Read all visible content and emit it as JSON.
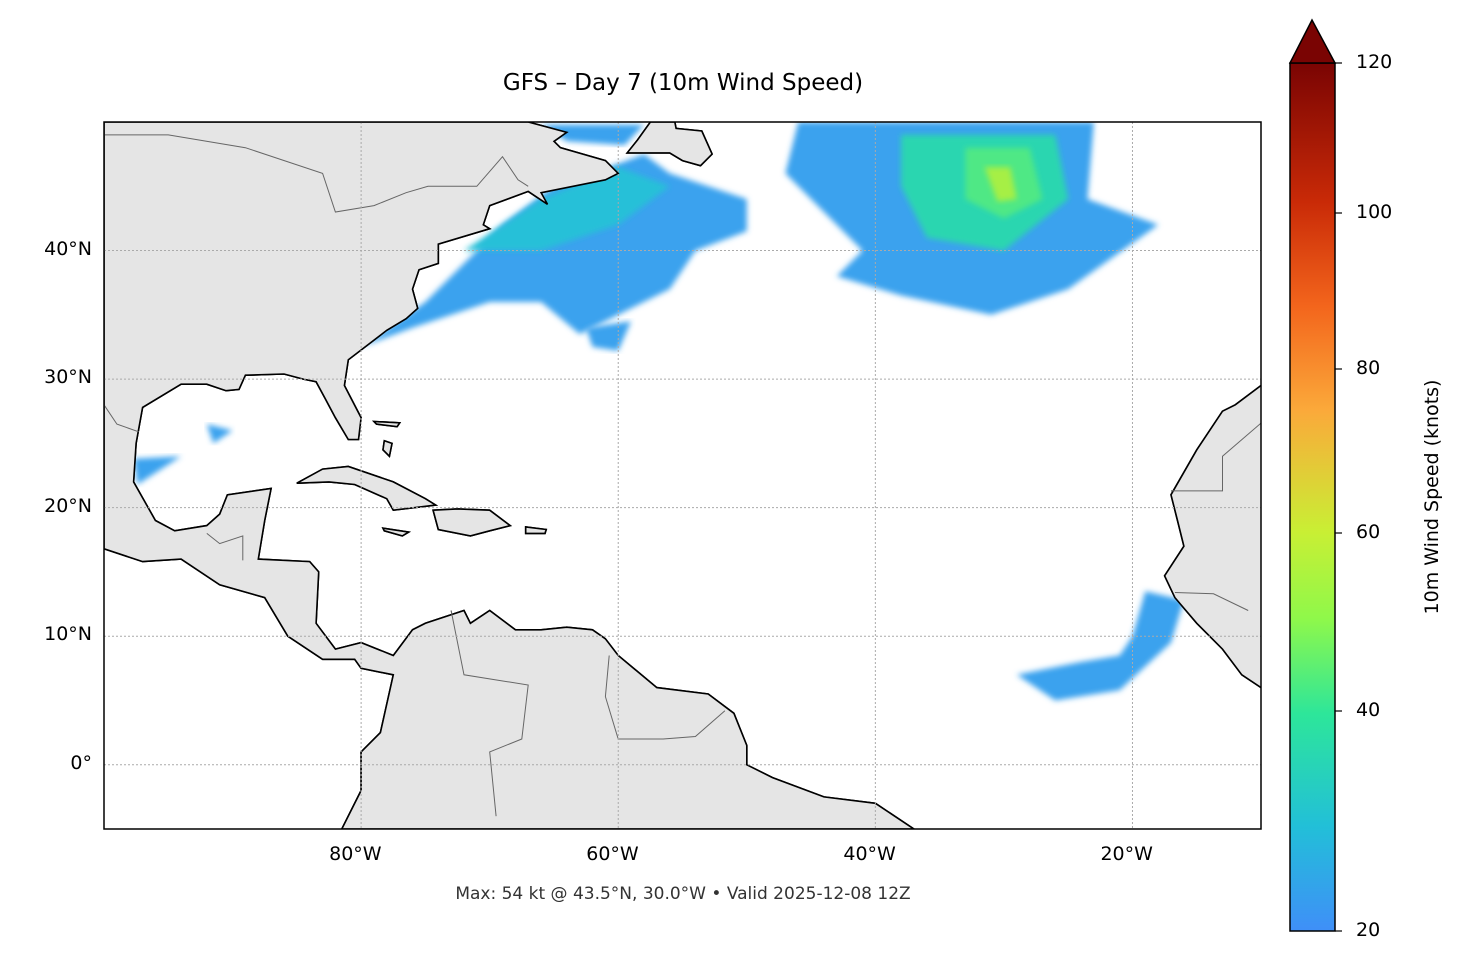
{
  "title": "GFS – Day 7 (10m Wind Speed)",
  "footer": "Max: 54 kt @ 43.5°N, 30.0°W • Valid 2025-12-08 12Z",
  "map": {
    "projection": "PlateCarree",
    "extent_lon": [
      -100,
      -10
    ],
    "extent_lat": [
      -5,
      50
    ],
    "land_color": "#e5e5e5",
    "gridlines": "dotted",
    "lon_ticks": [
      {
        "value": -80,
        "label": "80°W"
      },
      {
        "value": -60,
        "label": "60°W"
      },
      {
        "value": -40,
        "label": "40°W"
      },
      {
        "value": -20,
        "label": "20°W"
      }
    ],
    "lat_ticks": [
      {
        "value": 40,
        "label": "40°N"
      },
      {
        "value": 30,
        "label": "30°N"
      },
      {
        "value": 20,
        "label": "20°N"
      },
      {
        "value": 10,
        "label": "10°N"
      },
      {
        "value": 0,
        "label": "0°"
      }
    ]
  },
  "colorbar": {
    "label": "10m Wind Speed (knots)",
    "ticks": [
      "20",
      "40",
      "60",
      "80",
      "100",
      "120"
    ],
    "extend": "max",
    "colormap": "turbo",
    "colors": [
      "#3f8ff8",
      "#22bfd8",
      "#2de69a",
      "#8ff84a",
      "#c9ef34",
      "#fba93a",
      "#f3651c",
      "#c92a07",
      "#7a0403"
    ]
  },
  "max": {
    "speed_kt": 54,
    "lat": 43.5,
    "lon": -30.0
  }
}
